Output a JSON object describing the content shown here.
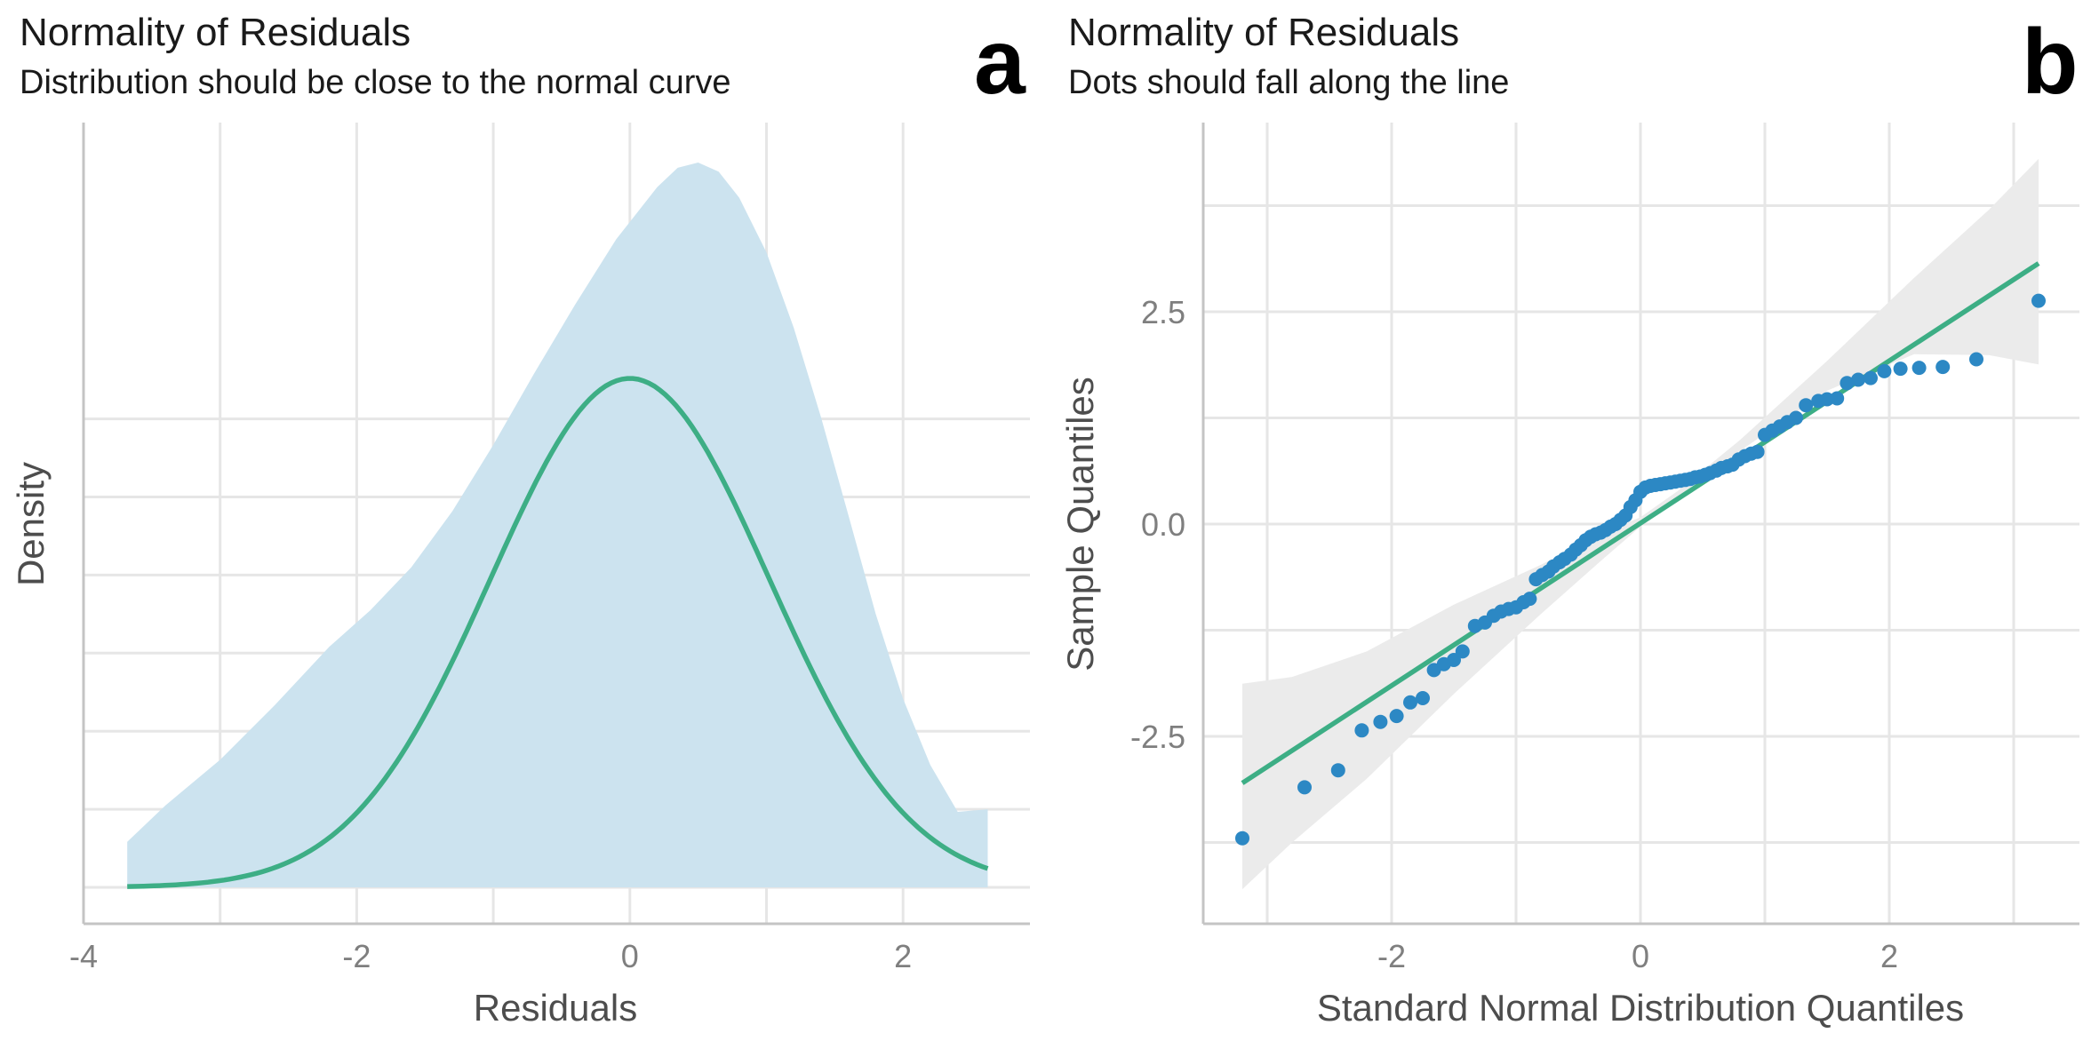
{
  "chart_data": [
    {
      "type": "area",
      "panel_tag": "a",
      "title": "Normality of Residuals",
      "subtitle": "Distribution should be close to the normal curve",
      "xlabel": "Residuals",
      "ylabel": "Density",
      "xlim": [
        -4,
        3
      ],
      "x_ticks": [
        "-4",
        "-2",
        "0",
        "2"
      ],
      "y_ticks_labeled": false,
      "grid": true,
      "legend": "none",
      "series": [
        {
          "kind": "density-area",
          "color": "#cce3ef",
          "x": [
            -3.68,
            -3.4,
            -3.0,
            -2.6,
            -2.2,
            -1.9,
            -1.6,
            -1.3,
            -1.0,
            -0.7,
            -0.4,
            -0.1,
            0.2,
            0.35,
            0.5,
            0.65,
            0.8,
            1.0,
            1.2,
            1.4,
            1.6,
            1.8,
            2.0,
            2.2,
            2.4,
            2.62
          ],
          "y": [
            0.035,
            0.063,
            0.098,
            0.14,
            0.185,
            0.213,
            0.246,
            0.289,
            0.34,
            0.395,
            0.448,
            0.498,
            0.538,
            0.553,
            0.557,
            0.55,
            0.53,
            0.488,
            0.43,
            0.361,
            0.286,
            0.21,
            0.145,
            0.094,
            0.058,
            0.06
          ]
        },
        {
          "kind": "normal-curve",
          "color": "#3dae85",
          "mean": 0,
          "sd": 1.02,
          "x_range": [
            -3.68,
            2.62
          ]
        }
      ]
    },
    {
      "type": "scatter",
      "panel_tag": "b",
      "title": "Normality of Residuals",
      "subtitle": "Dots should fall along the line",
      "xlabel": "Standard Normal Distribution Quantiles",
      "ylabel": "Sample Quantiles",
      "xlim": [
        -3.5,
        3.5
      ],
      "ylim": [
        -4.7,
        4.7
      ],
      "x_ticks": [
        "-2",
        "0",
        "2"
      ],
      "y_ticks": [
        "-2.5",
        "0.0",
        "2.5"
      ],
      "grid": true,
      "legend": "none",
      "reference_line": {
        "color": "#3dae85",
        "x": [
          -3.2,
          3.2
        ],
        "y": [
          -3.05,
          3.07
        ]
      },
      "confidence_band": {
        "color": "#ebebeb",
        "x": [
          -3.2,
          -2.8,
          -2.2,
          -1.5,
          -0.8,
          -0.3,
          0,
          0.3,
          0.8,
          1.5,
          2.2,
          2.8,
          3.2
        ],
        "lower": [
          -4.3,
          -3.75,
          -3.0,
          -2.0,
          -1.06,
          -0.41,
          -0.03,
          0.32,
          0.86,
          1.57,
          2.0,
          1.99,
          1.88
        ],
        "upper": [
          -1.88,
          -1.8,
          -1.5,
          -0.95,
          -0.48,
          -0.1,
          0.08,
          0.39,
          0.99,
          1.92,
          2.9,
          3.7,
          4.3
        ]
      },
      "points_color": "#2c88c4",
      "points": [
        [
          -3.2,
          -3.7
        ],
        [
          -2.7,
          -3.1
        ],
        [
          -2.43,
          -2.9
        ],
        [
          -2.24,
          -2.43
        ],
        [
          -2.09,
          -2.33
        ],
        [
          -1.96,
          -2.26
        ],
        [
          -1.85,
          -2.1
        ],
        [
          -1.75,
          -2.05
        ],
        [
          -1.66,
          -1.72
        ],
        [
          -1.58,
          -1.65
        ],
        [
          -1.5,
          -1.6
        ],
        [
          -1.43,
          -1.5
        ],
        [
          -1.33,
          -1.2
        ],
        [
          -1.25,
          -1.16
        ],
        [
          -1.18,
          -1.08
        ],
        [
          -1.12,
          -1.03
        ],
        [
          -1.06,
          -1.0
        ],
        [
          -1.0,
          -0.98
        ],
        [
          -0.94,
          -0.92
        ],
        [
          -0.89,
          -0.88
        ],
        [
          -0.84,
          -0.65
        ],
        [
          -0.79,
          -0.6
        ],
        [
          -0.74,
          -0.56
        ],
        [
          -0.7,
          -0.5
        ],
        [
          -0.65,
          -0.45
        ],
        [
          -0.61,
          -0.41
        ],
        [
          -0.56,
          -0.36
        ],
        [
          -0.52,
          -0.3
        ],
        [
          -0.48,
          -0.25
        ],
        [
          -0.44,
          -0.19
        ],
        [
          -0.4,
          -0.15
        ],
        [
          -0.36,
          -0.12
        ],
        [
          -0.32,
          -0.1
        ],
        [
          -0.28,
          -0.07
        ],
        [
          -0.24,
          -0.03
        ],
        [
          -0.2,
          0.0
        ],
        [
          -0.16,
          0.05
        ],
        [
          -0.12,
          0.1
        ],
        [
          -0.08,
          0.2
        ],
        [
          -0.04,
          0.28
        ],
        [
          0.0,
          0.38
        ],
        [
          0.04,
          0.43
        ],
        [
          0.08,
          0.45
        ],
        [
          0.12,
          0.46
        ],
        [
          0.16,
          0.47
        ],
        [
          0.2,
          0.48
        ],
        [
          0.24,
          0.49
        ],
        [
          0.28,
          0.5
        ],
        [
          0.32,
          0.51
        ],
        [
          0.36,
          0.52
        ],
        [
          0.4,
          0.53
        ],
        [
          0.44,
          0.55
        ],
        [
          0.48,
          0.56
        ],
        [
          0.52,
          0.58
        ],
        [
          0.56,
          0.6
        ],
        [
          0.61,
          0.63
        ],
        [
          0.65,
          0.66
        ],
        [
          0.7,
          0.68
        ],
        [
          0.74,
          0.7
        ],
        [
          0.79,
          0.76
        ],
        [
          0.84,
          0.8
        ],
        [
          0.89,
          0.83
        ],
        [
          0.94,
          0.85
        ],
        [
          1.0,
          1.05
        ],
        [
          1.06,
          1.1
        ],
        [
          1.12,
          1.15
        ],
        [
          1.18,
          1.2
        ],
        [
          1.25,
          1.25
        ],
        [
          1.33,
          1.4
        ],
        [
          1.43,
          1.45
        ],
        [
          1.5,
          1.47
        ],
        [
          1.58,
          1.48
        ],
        [
          1.66,
          1.66
        ],
        [
          1.75,
          1.7
        ],
        [
          1.85,
          1.72
        ],
        [
          1.96,
          1.8
        ],
        [
          2.09,
          1.83
        ],
        [
          2.24,
          1.84
        ],
        [
          2.43,
          1.85
        ],
        [
          2.7,
          1.94
        ],
        [
          3.2,
          2.63
        ]
      ]
    }
  ]
}
